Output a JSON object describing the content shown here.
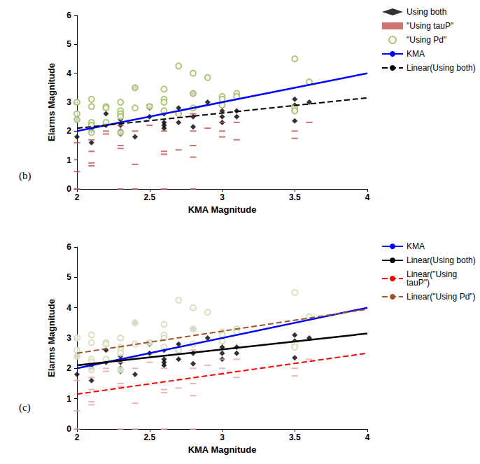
{
  "chart_data": [
    {
      "type": "scatter",
      "title": "(b)",
      "x_label": "KMA Magnitude",
      "y_label": "Elarms Magnitude",
      "xlim": [
        2,
        4
      ],
      "xticks": [
        2,
        2.5,
        3,
        3.5,
        4
      ],
      "ylim": [
        0,
        6
      ],
      "yticks": [
        0,
        1,
        2,
        3,
        4,
        5,
        6
      ],
      "grid": false,
      "legend": "right",
      "series": [
        {
          "name": "Using both",
          "type": "scatter",
          "marker": "diamond",
          "color": "#000000",
          "x": [
            2,
            2,
            2.1,
            2.1,
            2.1,
            2.2,
            2.2,
            2.2,
            2.3,
            2.3,
            2.3,
            2.3,
            2.4,
            2.4,
            2.5,
            2.5,
            2.6,
            2.6,
            2.6,
            2.6,
            2.7,
            2.7,
            2.8,
            2.8,
            2.8,
            2.9,
            3.0,
            3.0,
            3.0,
            3.1,
            3.1,
            3.5,
            3.5,
            3.5,
            3.6
          ],
          "values": [
            2.4,
            1.8,
            2.0,
            1.6,
            2.1,
            2.6,
            2.2,
            2.8,
            2.2,
            2.0,
            1.9,
            2.4,
            3.5,
            1.8,
            2.5,
            2.8,
            2.6,
            2.3,
            2.2,
            2.1,
            2.8,
            2.3,
            3.3,
            2.5,
            2.15,
            3.0,
            2.7,
            2.5,
            2.3,
            2.7,
            2.5,
            3.1,
            2.9,
            2.35,
            3.0
          ]
        },
        {
          "name": "\"Using tauP\"",
          "type": "scatter",
          "marker": "dash",
          "color": "#c0504d",
          "x": [
            2,
            2,
            2,
            2.1,
            2.1,
            2.1,
            2.1,
            2.2,
            2.2,
            2.3,
            2.3,
            2.3,
            2.3,
            2.3,
            2.4,
            2.4,
            2.4,
            2.5,
            2.5,
            2.6,
            2.6,
            2.6,
            2.6,
            2.7,
            2.7,
            2.8,
            2.8,
            2.8,
            2.8,
            2.8,
            2.9,
            3.0,
            3.0,
            3.0,
            3.1,
            3.1,
            3.5,
            3.5,
            3.5,
            3.6
          ],
          "values": [
            1.6,
            0.6,
            0,
            1.7,
            1.3,
            0.9,
            0.8,
            2.0,
            1.9,
            2.2,
            1.5,
            1.4,
            0,
            2.3,
            2.0,
            0.85,
            0,
            2.9,
            2.2,
            2.0,
            1.3,
            1.2,
            0,
            1.35,
            2.6,
            2.0,
            1.5,
            1.1,
            0,
            2.6,
            2.1,
            2.0,
            1.8,
            2.3,
            1.7,
            2.3,
            2.7,
            2.0,
            1.75,
            2.3
          ]
        },
        {
          "name": "\"Using Pd\"",
          "type": "scatter",
          "marker": "circle_open",
          "color": "#9bbb59",
          "x": [
            2,
            2,
            2,
            2.1,
            2.1,
            2.1,
            2.1,
            2.1,
            2.2,
            2.2,
            2.2,
            2.3,
            2.3,
            2.3,
            2.3,
            2.3,
            2.4,
            2.4,
            2.5,
            2.6,
            2.6,
            2.6,
            2.6,
            2.7,
            2.7,
            2.8,
            2.8,
            2.8,
            2.9,
            3.0,
            3.0,
            3.0,
            3.1,
            3.1,
            3.5,
            3.5,
            3.5,
            3.6
          ],
          "values": [
            3.0,
            2.6,
            2.4,
            3.1,
            2.85,
            2.3,
            2.2,
            1.95,
            2.85,
            2.8,
            2.3,
            3.0,
            2.7,
            2.6,
            2.5,
            1.95,
            3.5,
            2.8,
            2.85,
            3.45,
            3.1,
            3.0,
            2.7,
            4.25,
            2.6,
            4.0,
            3.3,
            2.8,
            3.85,
            3.2,
            3.1,
            2.9,
            3.3,
            3.2,
            4.5,
            2.8,
            2.7,
            3.7
          ]
        },
        {
          "name": "KMA",
          "type": "line",
          "line_style": "solid",
          "color": "#0000ff",
          "x": [
            2,
            4
          ],
          "values": [
            2,
            4
          ]
        },
        {
          "name": "Linear(Using both)",
          "type": "line",
          "line_style": "dashed",
          "color": "#000000",
          "x": [
            2,
            4
          ],
          "values": [
            2.1,
            3.15
          ]
        }
      ]
    },
    {
      "type": "scatter",
      "title": "(c)",
      "x_label": "KMA Magnitude",
      "y_label": "Elarms Magnitude",
      "xlim": [
        2,
        4
      ],
      "xticks": [
        2,
        2.5,
        3,
        3.5,
        4
      ],
      "ylim": [
        0,
        6
      ],
      "yticks": [
        0,
        1,
        2,
        3,
        4,
        5,
        6
      ],
      "grid": false,
      "legend": "right",
      "series": [
        {
          "type": "scatter",
          "marker": "diamond",
          "color": "#000000",
          "x": [
            2,
            2,
            2.1,
            2.1,
            2.1,
            2.2,
            2.2,
            2.2,
            2.3,
            2.3,
            2.3,
            2.3,
            2.4,
            2.4,
            2.5,
            2.5,
            2.6,
            2.6,
            2.6,
            2.6,
            2.7,
            2.7,
            2.8,
            2.8,
            2.8,
            2.9,
            3.0,
            3.0,
            3.0,
            3.1,
            3.1,
            3.5,
            3.5,
            3.5,
            3.6
          ],
          "values": [
            2.4,
            1.8,
            2.0,
            1.6,
            2.1,
            2.6,
            2.2,
            2.8,
            2.2,
            2.0,
            1.9,
            2.4,
            3.5,
            1.8,
            2.5,
            2.8,
            2.6,
            2.3,
            2.2,
            2.1,
            2.8,
            2.3,
            3.3,
            2.5,
            2.15,
            3.0,
            2.7,
            2.5,
            2.3,
            2.7,
            2.5,
            3.1,
            2.9,
            2.35,
            3.0
          ]
        },
        {
          "type": "scatter",
          "marker": "dash",
          "color": "#e6a3a1",
          "x": [
            2,
            2,
            2,
            2.1,
            2.1,
            2.1,
            2.1,
            2.2,
            2.2,
            2.3,
            2.3,
            2.3,
            2.3,
            2.3,
            2.4,
            2.4,
            2.4,
            2.5,
            2.5,
            2.6,
            2.6,
            2.6,
            2.6,
            2.7,
            2.7,
            2.8,
            2.8,
            2.8,
            2.8,
            2.8,
            2.9,
            3.0,
            3.0,
            3.0,
            3.1,
            3.1,
            3.5,
            3.5,
            3.5,
            3.6
          ],
          "values": [
            1.6,
            0.6,
            0,
            1.7,
            1.3,
            0.9,
            0.8,
            2.0,
            1.9,
            2.2,
            1.5,
            1.4,
            0,
            2.3,
            2.0,
            0.85,
            0,
            2.9,
            2.2,
            2.0,
            1.3,
            1.2,
            0,
            1.35,
            2.6,
            2.0,
            1.5,
            1.1,
            0,
            2.6,
            2.1,
            2.0,
            1.8,
            2.3,
            1.7,
            2.3,
            2.7,
            2.0,
            1.75,
            2.3
          ]
        },
        {
          "type": "scatter",
          "marker": "circle_open",
          "color": "#cddcb0",
          "x": [
            2,
            2,
            2,
            2.1,
            2.1,
            2.1,
            2.1,
            2.1,
            2.2,
            2.2,
            2.2,
            2.3,
            2.3,
            2.3,
            2.3,
            2.3,
            2.4,
            2.4,
            2.5,
            2.6,
            2.6,
            2.6,
            2.6,
            2.7,
            2.7,
            2.8,
            2.8,
            2.8,
            2.9,
            3.0,
            3.0,
            3.0,
            3.1,
            3.1,
            3.5,
            3.5,
            3.5,
            3.6
          ],
          "values": [
            3.0,
            2.6,
            2.4,
            3.1,
            2.85,
            2.3,
            2.2,
            1.95,
            2.85,
            2.8,
            2.3,
            3.0,
            2.7,
            2.6,
            2.5,
            1.95,
            3.5,
            2.8,
            2.85,
            3.45,
            3.1,
            3.0,
            2.7,
            4.25,
            2.6,
            4.0,
            3.3,
            2.8,
            3.85,
            3.2,
            3.1,
            2.9,
            3.3,
            3.2,
            4.5,
            2.8,
            2.7,
            3.7
          ]
        },
        {
          "name": "KMA",
          "type": "line",
          "line_style": "solid",
          "color": "#0000ff",
          "x": [
            2,
            4
          ],
          "values": [
            2,
            4
          ]
        },
        {
          "name": "Linear(Using both)",
          "type": "line",
          "line_style": "solid",
          "color": "#000000",
          "x": [
            2,
            4
          ],
          "values": [
            2.1,
            3.15
          ]
        },
        {
          "name": "Linear(\"Using tauP\")",
          "type": "line",
          "line_style": "dashed",
          "color": "#ff0000",
          "x": [
            2,
            4
          ],
          "values": [
            1.15,
            2.5
          ]
        },
        {
          "name": "Linear(\"Using Pd\")",
          "type": "line",
          "line_style": "dashed",
          "color": "#a0522d",
          "x": [
            2,
            4
          ],
          "values": [
            2.5,
            3.95
          ]
        }
      ]
    }
  ]
}
